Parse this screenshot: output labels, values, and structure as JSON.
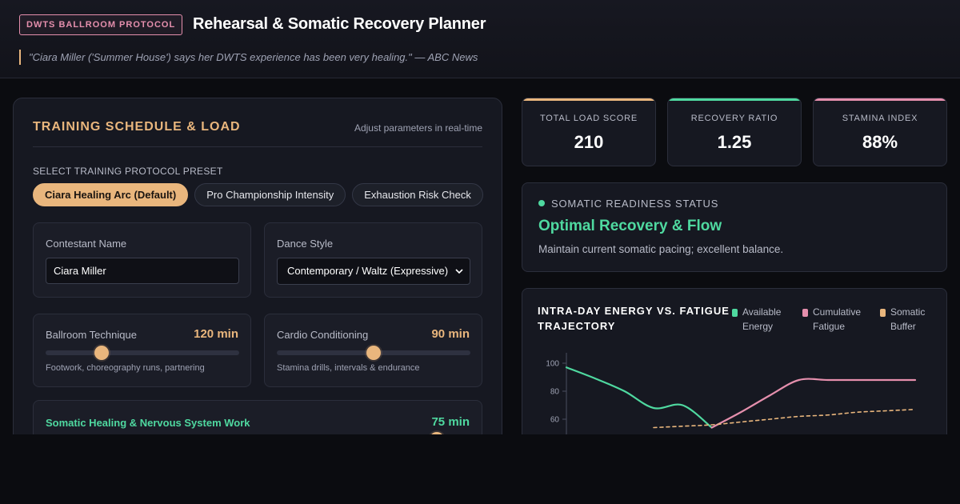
{
  "header": {
    "badge": "DWTS BALLROOM PROTOCOL",
    "title": "Rehearsal & Somatic Recovery Planner",
    "quote": "\"Ciara Miller ('Summer House') says her DWTS experience has been very healing.\" — ABC News"
  },
  "training": {
    "title": "TRAINING SCHEDULE & LOAD",
    "hint": "Adjust parameters in real-time",
    "preset_label": "SELECT TRAINING PROTOCOL PRESET",
    "presets": [
      {
        "label": "Ciara Healing Arc (Default)",
        "active": true
      },
      {
        "label": "Pro Championship Intensity",
        "active": false
      },
      {
        "label": "Exhaustion Risk Check",
        "active": false
      }
    ],
    "name_label": "Contestant Name",
    "name_value": "Ciara Miller",
    "style_label": "Dance Style",
    "style_value": "Contemporary / Waltz (Expressive)",
    "ballroom": {
      "label": "Ballroom Technique",
      "value": "120 min",
      "level": 0.29,
      "desc": "Footwork, choreography runs, partnering"
    },
    "cardio": {
      "label": "Cardio Conditioning",
      "value": "90 min",
      "level": 0.5,
      "desc": "Stamina drills, intervals & endurance"
    },
    "somatic": {
      "label": "Somatic Healing & Nervous System Work",
      "value": "75 min",
      "level": 0.92
    }
  },
  "metrics": {
    "load": {
      "label": "TOTAL LOAD SCORE",
      "value": "210",
      "color": "#e9b67d"
    },
    "recovery": {
      "label": "RECOVERY RATIO",
      "value": "1.25",
      "color": "#4fd9a0"
    },
    "stamina": {
      "label": "STAMINA INDEX",
      "value": "88%",
      "color": "#e58fad"
    }
  },
  "status": {
    "label": "SOMATIC READINESS STATUS",
    "headline": "Optimal Recovery & Flow",
    "description": "Maintain current somatic pacing; excellent balance.",
    "color": "#4fd9a0"
  },
  "chart": {
    "title": "INTRA-DAY ENERGY VS. FATIGUE TRAJECTORY",
    "legend": [
      {
        "name": "Available Energy",
        "color": "#4fd9a0"
      },
      {
        "name": "Cumulative Fatigue",
        "color": "#e58fad"
      },
      {
        "name": "Somatic Buffer",
        "color": "#e9b67d"
      }
    ]
  },
  "chart_data": {
    "type": "line",
    "title": "INTRA-DAY ENERGY VS. FATIGUE TRAJECTORY",
    "xlabel": "",
    "ylabel": "",
    "ylim": [
      0,
      100
    ],
    "y_ticks": [
      100,
      80,
      60
    ],
    "grid": false,
    "legend_position": "top-right",
    "x": [
      0,
      1,
      2,
      3,
      4,
      5,
      6,
      7,
      8,
      9,
      10,
      11,
      12
    ],
    "series": [
      {
        "name": "Available Energy",
        "values": [
          97,
          89,
          80,
          68,
          70,
          54,
          null,
          null,
          null,
          null,
          null,
          null,
          null
        ],
        "style": "solid"
      },
      {
        "name": "Cumulative Fatigue",
        "values": [
          null,
          null,
          null,
          null,
          null,
          54,
          65,
          77,
          88,
          88,
          88,
          88,
          88
        ],
        "style": "solid"
      },
      {
        "name": "Somatic Buffer",
        "values": [
          null,
          null,
          null,
          54,
          55,
          56,
          58,
          60,
          62,
          63,
          65,
          66,
          67
        ],
        "style": "dashed"
      }
    ]
  }
}
